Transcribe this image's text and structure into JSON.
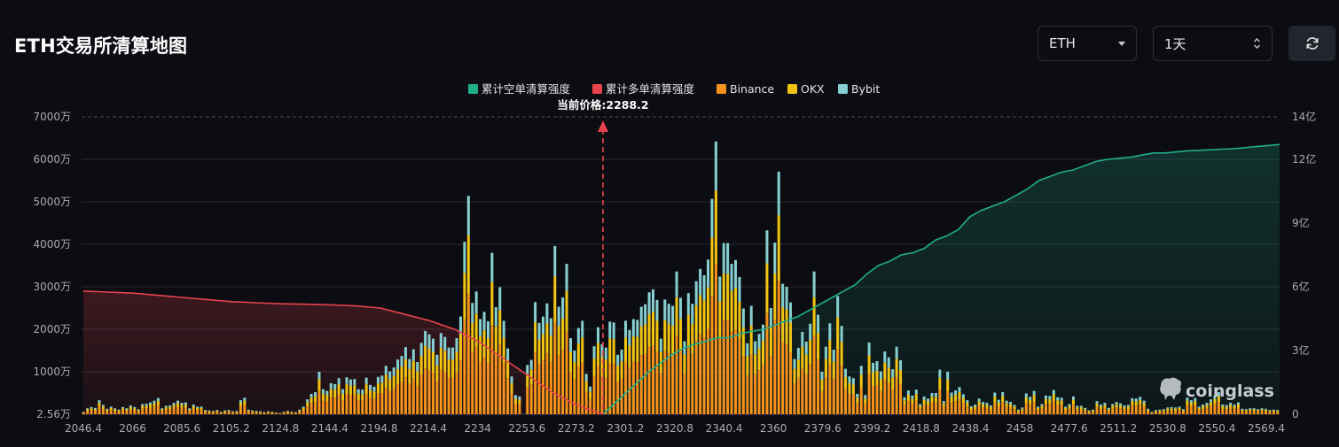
{
  "header": {
    "title": "ETH交易所清算地图",
    "coin_select": {
      "value": "ETH"
    },
    "period_select": {
      "value": "1天"
    }
  },
  "colors": {
    "short_cum": "#1fae8a",
    "long_cum": "#e8434d",
    "binance": "#f7931a",
    "okx": "#f2c40f",
    "bybit": "#86cfd0",
    "background": "#0c0d12"
  },
  "icons": {
    "refresh": "refresh-icon",
    "watermark": "coinglass-logo"
  },
  "watermark": "coinglass",
  "chart_data": {
    "type": "bar",
    "legend": [
      "累计空单清算强度",
      "累计多单清算强度",
      "Binance",
      "OKX",
      "Bybit"
    ],
    "legend_placement": "top-center",
    "current_price_label": "当前价格:2288.2",
    "current_price": 2288.2,
    "x_tick_labels": [
      "2046.4",
      "2066",
      "2085.6",
      "2105.2",
      "2124.8",
      "2144.4",
      "2194.8",
      "2214.4",
      "2234",
      "2253.6",
      "2273.2",
      "2301.2",
      "2320.8",
      "2340.4",
      "2360",
      "2379.6",
      "2399.2",
      "2418.8",
      "2438.4",
      "2458",
      "2477.6",
      "2511.2",
      "2530.8",
      "2550.4",
      "2569.4"
    ],
    "y_left": {
      "ticks": [
        "2.56万",
        "1000万",
        "2000万",
        "3000万",
        "4000万",
        "5000万",
        "6000万",
        "7000万"
      ],
      "range_wan": [
        0,
        7000
      ]
    },
    "y_right": {
      "ticks": [
        "0",
        "3亿",
        "6亿",
        "9亿",
        "12亿",
        "14亿"
      ],
      "range_yi": [
        0,
        14
      ]
    },
    "grid": true,
    "bars_total_wan": [
      60,
      140,
      170,
      150,
      330,
      220,
      130,
      180,
      140,
      110,
      170,
      140,
      210,
      170,
      120,
      240,
      250,
      280,
      320,
      380,
      140,
      200,
      210,
      270,
      320,
      270,
      280,
      140,
      230,
      180,
      180,
      100,
      90,
      80,
      100,
      60,
      90,
      100,
      70,
      80,
      330,
      390,
      110,
      90,
      80,
      70,
      50,
      70,
      60,
      40,
      30,
      60,
      80,
      60,
      50,
      110,
      180,
      350,
      480,
      520,
      1000,
      590,
      550,
      730,
      710,
      850,
      590,
      870,
      820,
      830,
      590,
      580,
      860,
      690,
      650,
      880,
      910,
      1140,
      1010,
      1100,
      1290,
      1370,
      1580,
      1300,
      1530,
      1230,
      1680,
      1960,
      1880,
      1780,
      1400,
      1910,
      1820,
      1570,
      1570,
      1790,
      2300,
      4060,
      5140,
      2620,
      2890,
      2240,
      2410,
      2190,
      3800,
      2520,
      2990,
      2200,
      1550,
      890,
      450,
      420,
      0,
      1160,
      1280,
      2640,
      2150,
      2300,
      2610,
      2260,
      3960,
      2530,
      2750,
      3540,
      1790,
      1500,
      2030,
      2200,
      950,
      650,
      1600,
      2050,
      1650,
      1570,
      2180,
      2160,
      1400,
      1520,
      2200,
      1980,
      2240,
      2220,
      2530,
      2590,
      2870,
      2940,
      2690,
      1780,
      2700,
      2600,
      2550,
      3360,
      2740,
      1720,
      2850,
      2600,
      3130,
      3420,
      3270,
      3640,
      5070,
      6420,
      3240,
      4030,
      4030,
      3540,
      3630,
      3230,
      2490,
      1670,
      2550,
      1720,
      1890,
      2110,
      4330,
      2500,
      4040,
      5710,
      3070,
      3000,
      2630,
      1300,
      1560,
      1940,
      1710,
      2130,
      3360,
      2340,
      1000,
      1590,
      2140,
      1520,
      2780,
      2080,
      1070,
      890,
      850,
      480,
      1140,
      450,
      1690,
      1210,
      1250,
      1010,
      1480,
      1340,
      1060,
      1590,
      1270,
      400,
      560,
      440,
      580,
      240,
      420,
      370,
      500,
      500,
      1050,
      310,
      1000,
      510,
      560,
      640,
      470,
      330,
      190,
      230,
      370,
      290,
      270,
      210,
      510,
      340,
      520,
      320,
      290,
      220,
      110,
      160,
      490,
      410,
      550,
      180,
      240,
      440,
      430,
      570,
      400,
      390,
      180,
      240,
      420,
      200,
      200,
      150,
      90,
      110,
      310,
      230,
      270,
      150,
      240,
      290,
      260,
      210,
      220,
      380,
      370,
      410,
      320,
      130,
      60,
      100,
      110,
      120,
      160,
      170,
      160,
      180,
      120,
      390,
      330,
      380,
      180,
      230,
      270,
      350,
      440,
      520,
      230,
      220,
      270,
      230,
      280,
      130,
      120,
      140,
      140,
      120,
      140,
      130,
      100,
      110,
      100
    ],
    "short_cum_yi": [
      0,
      0.5,
      1.0,
      1.5,
      2.0,
      2.4,
      2.8,
      3.1,
      3.3,
      3.45,
      3.6,
      3.6,
      3.8,
      3.9,
      4.0,
      4.2,
      4.4,
      4.6,
      4.9,
      5.2,
      5.5,
      5.8,
      6.1,
      6.6,
      7.0,
      7.2,
      7.5,
      7.6,
      7.8,
      8.2,
      8.4,
      8.7,
      9.3,
      9.6,
      9.8,
      10.0,
      10.3,
      10.6,
      11.0,
      11.2,
      11.4,
      11.5,
      11.7,
      11.9,
      12.0,
      12.05,
      12.1,
      12.2,
      12.3,
      12.3,
      12.35,
      12.4,
      12.42,
      12.45,
      12.48,
      12.5,
      12.55,
      12.6,
      12.65,
      12.7
    ],
    "long_cum_yi": [
      5.8,
      5.75,
      5.7,
      5.6,
      5.5,
      5.4,
      5.3,
      5.25,
      5.2,
      5.18,
      5.15,
      5.1,
      5.0,
      4.7,
      4.4,
      4.0,
      3.4,
      2.6,
      1.8,
      1.0,
      0.4,
      0
    ]
  }
}
